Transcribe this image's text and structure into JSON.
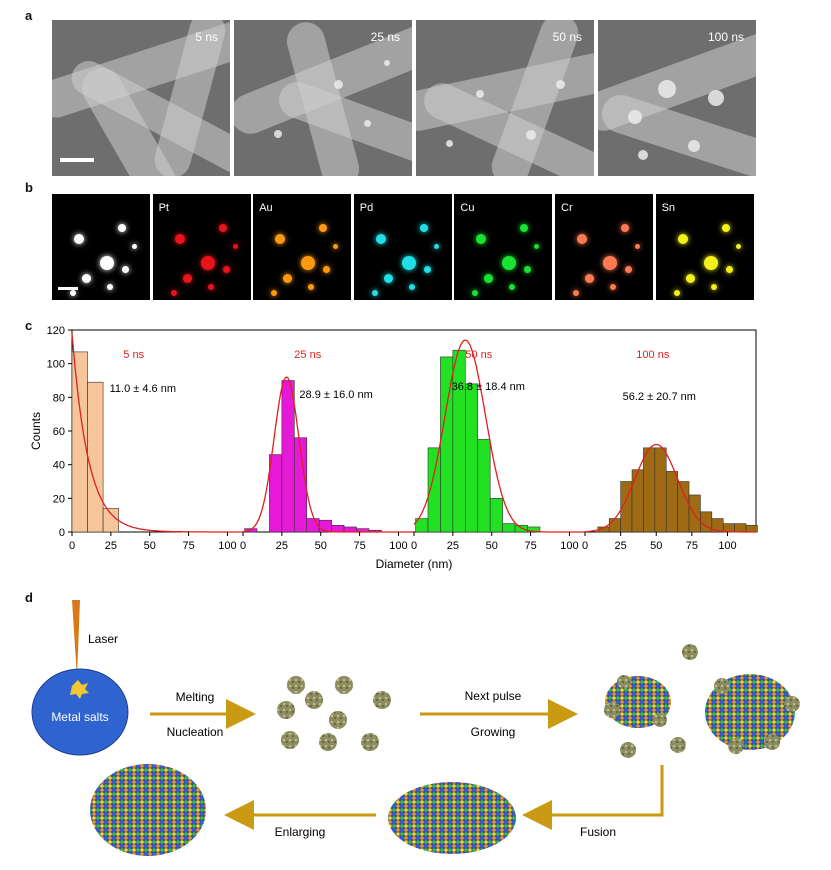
{
  "panel_labels": {
    "a": "a",
    "b": "b",
    "c": "c",
    "d": "d"
  },
  "sem_panels": [
    {
      "time": "5 ns"
    },
    {
      "time": "25 ns"
    },
    {
      "time": "50 ns"
    },
    {
      "time": "100 ns"
    }
  ],
  "element_maps": [
    {
      "label": "",
      "color": "#ffffff"
    },
    {
      "label": "Pt",
      "color": "#e8141c"
    },
    {
      "label": "Au",
      "color": "#ff9a10"
    },
    {
      "label": "Pd",
      "color": "#1fe0e6"
    },
    {
      "label": "Cu",
      "color": "#18e232"
    },
    {
      "label": "Cr",
      "color": "#ff7a52"
    },
    {
      "label": "Sn",
      "color": "#f4f01c"
    }
  ],
  "chart_data": {
    "type": "bar",
    "xlabel": "Diameter (nm)",
    "ylabel": "Counts",
    "ylim": [
      0,
      120
    ],
    "yticks": [
      0,
      20,
      40,
      60,
      80,
      100,
      120
    ],
    "panels": [
      {
        "name": "5 ns",
        "annotation": "11.0 ± 4.6 nm",
        "color": "#f7c59a",
        "xlim": [
          0,
          110
        ],
        "xticks": [
          0,
          25,
          50,
          75,
          100
        ],
        "bin_width": 10,
        "bins": [
          5,
          15,
          25,
          35,
          45,
          55,
          65,
          75,
          85,
          95,
          105
        ],
        "counts": [
          107,
          89,
          14,
          0,
          0,
          0,
          0,
          0,
          0,
          0,
          0
        ],
        "fit": {
          "mean": 3,
          "sd": 9,
          "peak": 118,
          "type": "lognormal-like"
        }
      },
      {
        "name": "25 ns",
        "annotation": "28.9 ± 16.0 nm",
        "color": "#e619d8",
        "xlim": [
          0,
          110
        ],
        "xticks": [
          0,
          25,
          50,
          75,
          100
        ],
        "bin_width": 8,
        "bins": [
          5,
          13,
          21,
          29,
          37,
          45,
          53,
          61,
          69,
          77,
          85
        ],
        "counts": [
          2,
          0,
          46,
          90,
          56,
          8,
          7,
          4,
          3,
          2,
          1
        ],
        "fit": {
          "mean": 28,
          "sd": 8,
          "peak": 92
        }
      },
      {
        "name": "50 ns",
        "annotation": "36.8 ± 18.4 nm",
        "color": "#22e022",
        "xlim": [
          0,
          110
        ],
        "xticks": [
          0,
          25,
          50,
          75,
          100
        ],
        "bin_width": 8,
        "bins": [
          5,
          13,
          21,
          29,
          37,
          45,
          53,
          61,
          69,
          77,
          85
        ],
        "counts": [
          8,
          50,
          104,
          108,
          88,
          55,
          20,
          5,
          4,
          3,
          0
        ],
        "fit": {
          "mean": 33,
          "sd": 13,
          "peak": 114
        }
      },
      {
        "name": "100 ns",
        "annotation": "56.2 ± 20.7 nm",
        "color": "#9e6a14",
        "xlim": [
          0,
          120
        ],
        "xticks": [
          0,
          25,
          50,
          75,
          100
        ],
        "bin_width": 8,
        "bins": [
          13,
          21,
          29,
          37,
          45,
          53,
          61,
          69,
          77,
          85,
          93,
          101,
          109,
          117
        ],
        "counts": [
          3,
          8,
          30,
          37,
          50,
          50,
          36,
          30,
          22,
          12,
          8,
          5,
          5,
          4
        ],
        "fit": {
          "mean": 50,
          "sd": 15,
          "peak": 52
        }
      }
    ]
  },
  "schematic": {
    "laser": "Laser",
    "metal_salts": "Metal salts",
    "melting": "Melting",
    "nucleation": "Nucleation",
    "next_pulse": "Next pulse",
    "growing": "Growing",
    "fusion": "Fusion",
    "enlarging": "Enlarging",
    "arrow_color": "#c99a12",
    "salt_color": "#2f63cf"
  }
}
